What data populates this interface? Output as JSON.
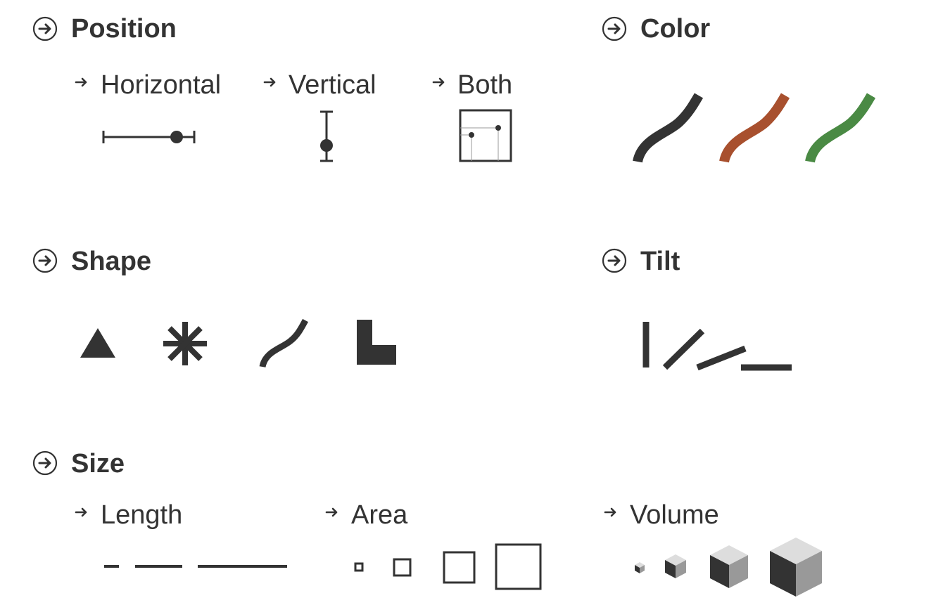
{
  "sections": {
    "position": {
      "title": "Position",
      "subs": {
        "horizontal": "Horizontal",
        "vertical": "Vertical",
        "both": "Both"
      }
    },
    "color": {
      "title": "Color",
      "swatches": [
        "#333333",
        "#a8502e",
        "#4a8a44"
      ]
    },
    "shape": {
      "title": "Shape",
      "glyphs": [
        "triangle-icon",
        "asterisk-icon",
        "curve-icon",
        "l-shape-icon"
      ]
    },
    "tilt": {
      "title": "Tilt",
      "angles_deg": [
        90,
        45,
        20,
        0
      ]
    },
    "size": {
      "title": "Size",
      "subs": {
        "length": "Length",
        "area": "Area",
        "volume": "Volume"
      }
    }
  },
  "colors": {
    "ink": "#333333",
    "background": "#ffffff"
  }
}
